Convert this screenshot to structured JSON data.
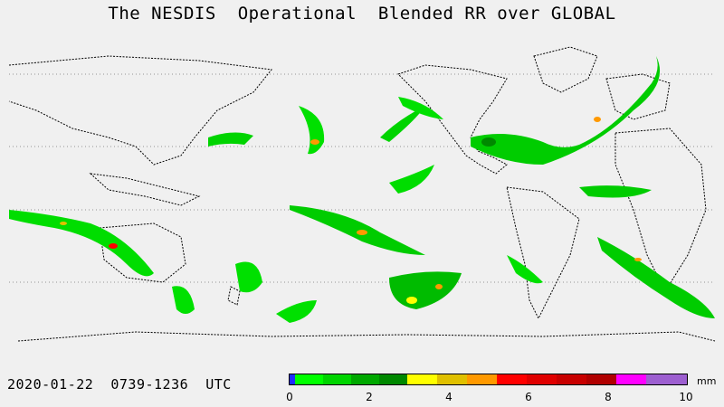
{
  "title": "The NESDIS  Operational  Blended RR over GLOBAL",
  "timestamp": "2020-01-22  0739-1236  UTC",
  "colorbar": {
    "unit": "mm",
    "tick_labels": [
      "0",
      "2",
      "4",
      "6",
      "8",
      "10"
    ],
    "colors": [
      "#1e2cff",
      "#00ff00",
      "#00d400",
      "#00a800",
      "#008800",
      "#ffff00",
      "#e0c000",
      "#ff9900",
      "#ff0000",
      "#e00000",
      "#c80000",
      "#b00000",
      "#ff00ff",
      "#9d5fd0"
    ]
  }
}
